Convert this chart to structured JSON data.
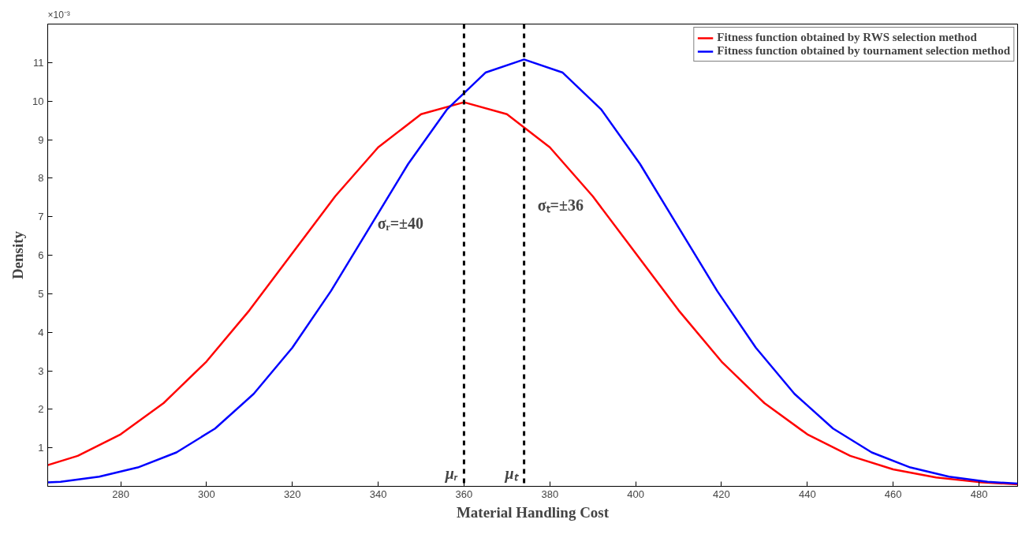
{
  "chart_data": {
    "type": "line",
    "xlabel": "Material Handling Cost",
    "ylabel": "Density",
    "xlim": [
      263,
      489
    ],
    "ylim": [
      0,
      12
    ],
    "xticks": [
      280,
      300,
      320,
      340,
      360,
      380,
      400,
      420,
      440,
      460,
      480
    ],
    "yticks": [
      1,
      2,
      3,
      4,
      5,
      6,
      7,
      8,
      9,
      10,
      11
    ],
    "grid": false,
    "legend": "top right",
    "line_style": "solid",
    "marker": "none",
    "series": [
      {
        "name": "Fitness function obtained by RWS selection method",
        "color": "#ff0000",
        "x": [
          263,
          270,
          280,
          290,
          300,
          310,
          320,
          330,
          340,
          350,
          360,
          370,
          380,
          390,
          400,
          410,
          420,
          430,
          440,
          450,
          460,
          470,
          480,
          489
        ],
        "values": [
          0.55,
          0.79,
          1.35,
          2.16,
          3.24,
          4.57,
          6.05,
          7.53,
          8.8,
          9.66,
          9.97,
          9.66,
          8.8,
          7.53,
          6.05,
          4.57,
          3.24,
          2.16,
          1.35,
          0.79,
          0.44,
          0.23,
          0.11,
          0.05
        ]
      },
      {
        "name": "Fitness function obtained by tournament selection method",
        "color": "#0000ff",
        "x": [
          263,
          266,
          275,
          284,
          293,
          302,
          311,
          320,
          329,
          338,
          347,
          356,
          365,
          374,
          383,
          392,
          401,
          410,
          419,
          428,
          437,
          446,
          455,
          464,
          473,
          482,
          489
        ],
        "values": [
          0.1,
          0.12,
          0.25,
          0.49,
          0.88,
          1.5,
          2.4,
          3.6,
          5.07,
          6.72,
          8.37,
          9.78,
          10.74,
          11.08,
          10.74,
          9.78,
          8.37,
          6.72,
          5.07,
          3.6,
          2.4,
          1.5,
          0.88,
          0.49,
          0.25,
          0.12,
          0.07
        ]
      }
    ],
    "ref_lines": [
      {
        "axis": "x",
        "value": 360,
        "label": "μᵣ",
        "line_style": "dashed",
        "color": "#000000"
      },
      {
        "axis": "x",
        "value": 374,
        "label": "μₜ",
        "line_style": "dashed",
        "color": "#000000"
      }
    ],
    "annotations": [
      "×10⁻³",
      "σᵣ=±40",
      "σₜ=±36"
    ]
  }
}
